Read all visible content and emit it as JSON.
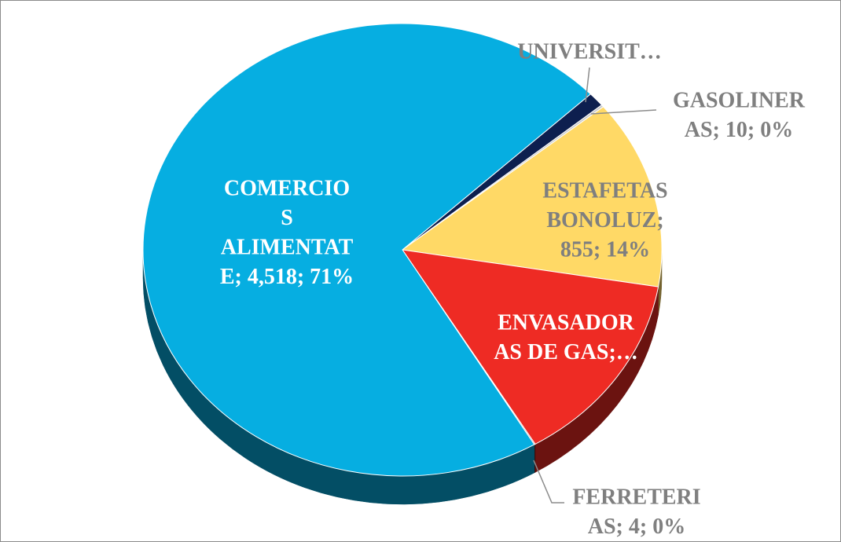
{
  "chart_data": {
    "type": "pie3d",
    "values": [
      65,
      10,
      855,
      875,
      4,
      4518
    ],
    "colors": [
      "#0d1f4f",
      "#c9c9c9",
      "#ffd966",
      "#ee2b24",
      "#7a1a10",
      "#06aee1"
    ],
    "value_labels": [
      [
        "UNIVERSIT…"
      ],
      [
        "GASOLINER",
        "AS; 10; 0%"
      ],
      [
        "ESTAFETAS",
        "BONOLUZ;",
        "855; 14%"
      ],
      [
        "ENVASADOR",
        "AS DE GAS;…"
      ],
      [
        "FERRETERI",
        "AS; 4; 0%"
      ],
      [
        "COMERCIO",
        "S",
        "ALIMENTAT",
        "E; 4,518; 71%"
      ]
    ],
    "label_colors": [
      "#7f7f7f",
      "#7f7f7f",
      "#7f7f7f",
      "#ffffff",
      "#7f7f7f",
      "#ffffff"
    ]
  }
}
